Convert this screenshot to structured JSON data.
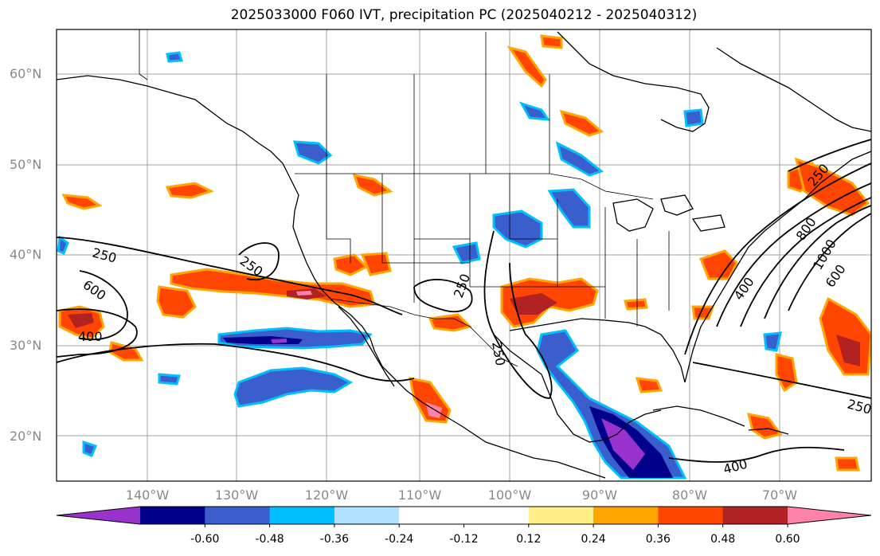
{
  "title": "2025033000 F060 IVT, precipitation PC (2025040212 - 2025040312)",
  "lat_ticks": [
    "60°N",
    "50°N",
    "40°N",
    "30°N",
    "20°N"
  ],
  "lon_ticks": [
    "140°W",
    "130°W",
    "120°W",
    "110°W",
    "100°W",
    "90°W",
    "80°W",
    "70°W"
  ],
  "colorbar": {
    "colors": [
      "#9a32cd",
      "#00008b",
      "#3a5fcd",
      "#00bfff",
      "#b0e2ff",
      "#ffffff",
      "#ffffff",
      "#fff08a",
      "#ffa500",
      "#ff4500",
      "#b22222",
      "#ff82ab"
    ],
    "tick_labels": [
      "-0.60",
      "-0.48",
      "-0.36",
      "-0.24",
      "-0.12",
      "0.12",
      "0.24",
      "0.36",
      "0.48",
      "0.60"
    ]
  },
  "ivt_contour_labels": [
    "250",
    "250",
    "600",
    "400",
    "250",
    "250",
    "400",
    "800",
    "1000",
    "600",
    "250",
    "400",
    "250"
  ]
}
